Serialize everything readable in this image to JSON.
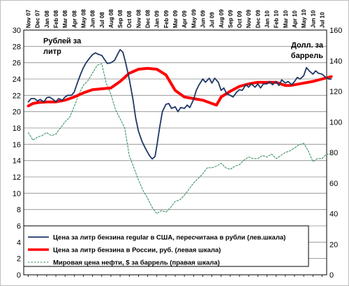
{
  "chart_data": {
    "type": "line",
    "left_axis_label": "Рублей за литр",
    "right_axis_label": "Долл. за баррель",
    "yleft_lim": [
      0,
      30
    ],
    "yleft_ticks": [
      0,
      2,
      4,
      6,
      8,
      10,
      12,
      14,
      16,
      18,
      20,
      22,
      24,
      26,
      28,
      30
    ],
    "yright_lim": [
      0,
      160
    ],
    "yright_ticks": [
      0,
      20,
      40,
      60,
      80,
      100,
      120,
      140,
      160
    ],
    "grid": true,
    "legend_position": "bottom-center",
    "x_tick_labels": [
      "Nov 07",
      "Dec 07",
      "Jan 08",
      "Feb 08",
      "Mar 08",
      "Apr 08",
      "May 08",
      "Jun 08",
      "Jul 08",
      "Aug 08",
      "Sep 08",
      "Oct 08",
      "Nov 08",
      "Dec 08",
      "Jan 09",
      "Feb 09",
      "Mar 09",
      "Apr 09",
      "May 09",
      "Jun 09",
      "Jul 09",
      "Aug 09",
      "Sep 09",
      "Oct 09",
      "Nov 09",
      "Dec 09",
      "Jan 10",
      "Feb 10",
      "Mar 10",
      "Apr 10",
      "May 10",
      "Jun 10",
      "Jul 10"
    ],
    "series": [
      {
        "name": "Цена за литр бензина regular в США, пересчитана в рубли (лев.шкала)",
        "axis": "left",
        "color": "#1f3864",
        "style": "solid",
        "points": [
          [
            0,
            21.2
          ],
          [
            0.3,
            21.6
          ],
          [
            0.7,
            21.6
          ],
          [
            1.0,
            21.3
          ],
          [
            1.3,
            21.5
          ],
          [
            1.7,
            21.2
          ],
          [
            2.0,
            21.7
          ],
          [
            2.3,
            21.8
          ],
          [
            2.7,
            21.5
          ],
          [
            3.0,
            21.2
          ],
          [
            3.3,
            21.6
          ],
          [
            3.7,
            21.4
          ],
          [
            4.0,
            21.8
          ],
          [
            4.3,
            22.0
          ],
          [
            4.7,
            22.0
          ],
          [
            5.0,
            22.4
          ],
          [
            5.3,
            23.4
          ],
          [
            5.7,
            24.6
          ],
          [
            6.0,
            25.4
          ],
          [
            6.3,
            26.0
          ],
          [
            6.7,
            26.6
          ],
          [
            7.0,
            27.0
          ],
          [
            7.3,
            27.2
          ],
          [
            7.7,
            27.0
          ],
          [
            8.0,
            26.9
          ],
          [
            8.3,
            26.4
          ],
          [
            8.6,
            25.9
          ],
          [
            9.0,
            26.0
          ],
          [
            9.4,
            26.3
          ],
          [
            9.8,
            27.2
          ],
          [
            10.0,
            27.6
          ],
          [
            10.3,
            27.3
          ],
          [
            10.6,
            26.0
          ],
          [
            11.0,
            24.0
          ],
          [
            11.4,
            21.5
          ],
          [
            11.7,
            19.2
          ],
          [
            12.0,
            17.6
          ],
          [
            12.4,
            16.3
          ],
          [
            12.8,
            15.4
          ],
          [
            13.2,
            14.6
          ],
          [
            13.5,
            14.2
          ],
          [
            13.8,
            14.5
          ],
          [
            14.0,
            15.8
          ],
          [
            14.3,
            18.0
          ],
          [
            14.6,
            20.0
          ],
          [
            15.0,
            20.9
          ],
          [
            15.3,
            21.0
          ],
          [
            15.6,
            20.4
          ],
          [
            16.0,
            20.6
          ],
          [
            16.3,
            20.0
          ],
          [
            16.6,
            20.5
          ],
          [
            17.0,
            20.4
          ],
          [
            17.3,
            20.8
          ],
          [
            17.6,
            20.5
          ],
          [
            18.0,
            21.5
          ],
          [
            18.3,
            22.6
          ],
          [
            18.6,
            23.3
          ],
          [
            19.0,
            24.0
          ],
          [
            19.3,
            23.6
          ],
          [
            19.7,
            24.1
          ],
          [
            20.0,
            23.5
          ],
          [
            20.3,
            24.1
          ],
          [
            20.7,
            23.6
          ],
          [
            21.0,
            22.6
          ],
          [
            21.3,
            22.9
          ],
          [
            21.6,
            22.2
          ],
          [
            22.0,
            22.0
          ],
          [
            22.3,
            21.8
          ],
          [
            22.7,
            22.4
          ],
          [
            23.0,
            22.7
          ],
          [
            23.3,
            22.6
          ],
          [
            23.7,
            23.3
          ],
          [
            24.0,
            23.0
          ],
          [
            24.3,
            23.4
          ],
          [
            24.7,
            23.0
          ],
          [
            25.0,
            23.4
          ],
          [
            25.3,
            22.9
          ],
          [
            25.6,
            23.4
          ],
          [
            26.0,
            23.4
          ],
          [
            26.3,
            23.7
          ],
          [
            26.6,
            23.3
          ],
          [
            27.0,
            23.7
          ],
          [
            27.3,
            23.2
          ],
          [
            27.6,
            23.9
          ],
          [
            28.0,
            23.5
          ],
          [
            28.3,
            23.7
          ],
          [
            28.7,
            23.3
          ],
          [
            29.0,
            23.7
          ],
          [
            29.3,
            24.2
          ],
          [
            29.6,
            24.0
          ],
          [
            30.0,
            24.4
          ],
          [
            30.3,
            25.4
          ],
          [
            30.6,
            25.0
          ],
          [
            31.0,
            24.6
          ],
          [
            31.3,
            25.0
          ],
          [
            31.6,
            24.7
          ],
          [
            32.0,
            24.6
          ],
          [
            32.4,
            24.2
          ],
          [
            32.7,
            24.0
          ],
          [
            33.0,
            24.0
          ]
        ]
      },
      {
        "name": "Цена за литр бензина в России, руб. (левая шкала)",
        "axis": "left",
        "color": "#ff0000",
        "style": "solid-thick",
        "points": [
          [
            0,
            20.7
          ],
          [
            0.5,
            21.0
          ],
          [
            1,
            21.1
          ],
          [
            2,
            21.2
          ],
          [
            3,
            21.2
          ],
          [
            4,
            21.4
          ],
          [
            5,
            21.8
          ],
          [
            6,
            22.3
          ],
          [
            7,
            22.7
          ],
          [
            8,
            22.8
          ],
          [
            9,
            22.9
          ],
          [
            10,
            23.7
          ],
          [
            11,
            24.7
          ],
          [
            12,
            25.2
          ],
          [
            13,
            25.3
          ],
          [
            14,
            25.2
          ],
          [
            15,
            24.5
          ],
          [
            16,
            22.6
          ],
          [
            17,
            21.8
          ],
          [
            18,
            21.6
          ],
          [
            19,
            21.4
          ],
          [
            20,
            21.0
          ],
          [
            20.5,
            20.8
          ],
          [
            21,
            21.8
          ],
          [
            22,
            22.5
          ],
          [
            23,
            23.1
          ],
          [
            24,
            23.4
          ],
          [
            25,
            23.6
          ],
          [
            26,
            23.6
          ],
          [
            27,
            23.6
          ],
          [
            28,
            23.2
          ],
          [
            28.5,
            23.2
          ],
          [
            29,
            23.3
          ],
          [
            30,
            23.5
          ],
          [
            31,
            23.7
          ],
          [
            32,
            24.0
          ],
          [
            33,
            24.3
          ]
        ]
      },
      {
        "name": "Мировая цена нефти, $ за баррель (правая шкала)",
        "axis": "right",
        "color": "#2e8b57",
        "style": "dashed",
        "points": [
          [
            0,
            93
          ],
          [
            0.5,
            88
          ],
          [
            1,
            90
          ],
          [
            1.5,
            91
          ],
          [
            2,
            93
          ],
          [
            2.5,
            91
          ],
          [
            3,
            92
          ],
          [
            3.5,
            96
          ],
          [
            4,
            100
          ],
          [
            4.5,
            103
          ],
          [
            5,
            110
          ],
          [
            5.5,
            118
          ],
          [
            6,
            124
          ],
          [
            6.5,
            127
          ],
          [
            7,
            132
          ],
          [
            7.5,
            137
          ],
          [
            8,
            138
          ],
          [
            8.5,
            125
          ],
          [
            9,
            118
          ],
          [
            9.5,
            108
          ],
          [
            10,
            102
          ],
          [
            10.5,
            96
          ],
          [
            11,
            78
          ],
          [
            11.5,
            70
          ],
          [
            12,
            62
          ],
          [
            12.5,
            55
          ],
          [
            13,
            50
          ],
          [
            13.5,
            44
          ],
          [
            14,
            40
          ],
          [
            14.5,
            42
          ],
          [
            15,
            41
          ],
          [
            15.5,
            44
          ],
          [
            16,
            48
          ],
          [
            16.5,
            49
          ],
          [
            17,
            52
          ],
          [
            17.5,
            56
          ],
          [
            18,
            60
          ],
          [
            18.5,
            63
          ],
          [
            19,
            66
          ],
          [
            19.5,
            70
          ],
          [
            20,
            70
          ],
          [
            20.5,
            71
          ],
          [
            21,
            73
          ],
          [
            21.5,
            70
          ],
          [
            22,
            69
          ],
          [
            22.5,
            71
          ],
          [
            23,
            72
          ],
          [
            23.5,
            75
          ],
          [
            24,
            77
          ],
          [
            24.5,
            76
          ],
          [
            25,
            76
          ],
          [
            25.5,
            78
          ],
          [
            26,
            77
          ],
          [
            26.5,
            79
          ],
          [
            27,
            76
          ],
          [
            27.5,
            78
          ],
          [
            28,
            80
          ],
          [
            28.5,
            81
          ],
          [
            29,
            83
          ],
          [
            29.5,
            85
          ],
          [
            30,
            86
          ],
          [
            30.5,
            81
          ],
          [
            31,
            74
          ],
          [
            31.5,
            76
          ],
          [
            32,
            76
          ],
          [
            32.5,
            79
          ],
          [
            33,
            79
          ]
        ]
      }
    ]
  }
}
